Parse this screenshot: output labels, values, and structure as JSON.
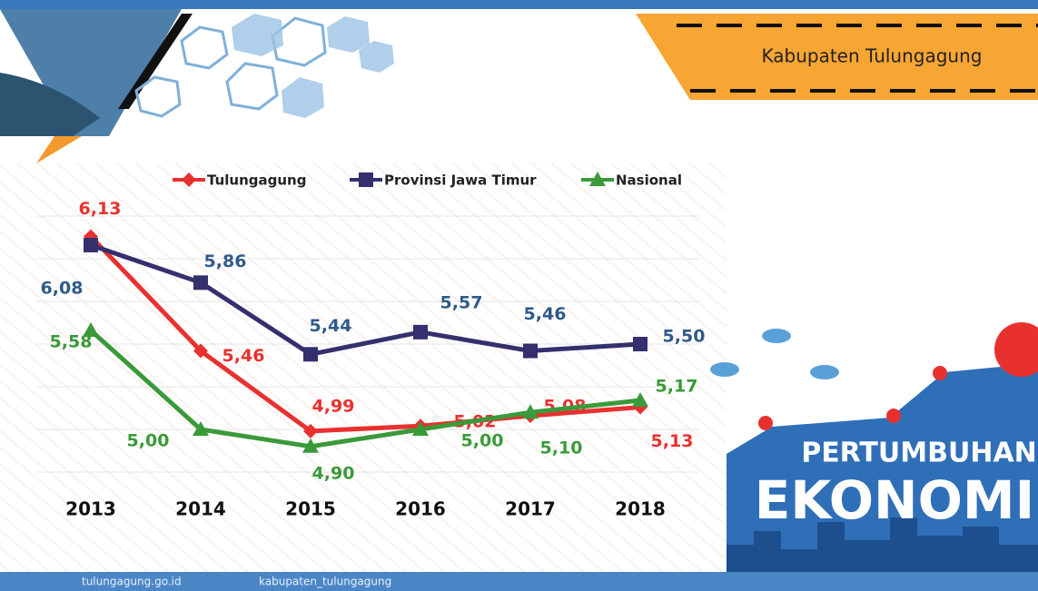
{
  "banner": {
    "region": "Kabupaten Tulungagung",
    "title_line1": "PERTUMBUHAN",
    "title_line2": "EKONOMI"
  },
  "footer": {
    "website": "tulungagung.go.id",
    "social": "kabupaten_tulungagung"
  },
  "chart_data": {
    "type": "line",
    "categories": [
      "2013",
      "2014",
      "2015",
      "2016",
      "2017",
      "2018"
    ],
    "series": [
      {
        "name": "Tulungagung",
        "color": "#e8312f",
        "values": [
          6.13,
          5.46,
          4.99,
          5.02,
          5.08,
          5.13
        ],
        "value_labels": [
          "6,13",
          "5,46",
          "4,99",
          "5,02",
          "5,08",
          "5,13"
        ]
      },
      {
        "name": "Provinsi Jawa Timur",
        "color": "#34306e",
        "values": [
          6.08,
          5.86,
          5.44,
          5.57,
          5.46,
          5.5
        ],
        "value_labels": [
          "6,08",
          "5,86",
          "5,44",
          "5,57",
          "5,46",
          "5,50"
        ]
      },
      {
        "name": "Nasional",
        "color": "#3a9a3a",
        "values": [
          5.58,
          5.0,
          4.9,
          5.0,
          5.1,
          5.17
        ],
        "value_labels": [
          "5,58",
          "5,00",
          "4,90",
          "5,00",
          "5,10",
          "5,17"
        ]
      }
    ],
    "ylim": [
      4.75,
      6.25
    ],
    "yticks": [
      4.75,
      5,
      5.25,
      5.5,
      5.75,
      6,
      6.25
    ],
    "grid": true
  }
}
